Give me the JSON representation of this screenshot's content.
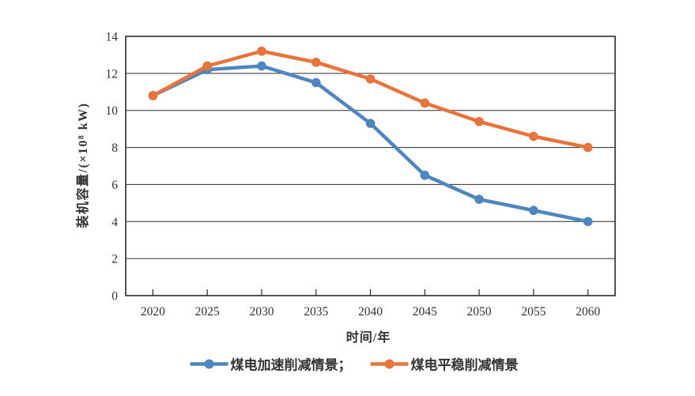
{
  "figure": {
    "background": "#ffffff",
    "text_color": "#333333",
    "axis_color": "#2b2b2b"
  },
  "chart_data": {
    "type": "line",
    "title": "",
    "xlabel": "时间/年",
    "ylabel": "装机容量/(×10⁸ kW)",
    "categories": [
      "2020",
      "2025",
      "2030",
      "2035",
      "2040",
      "2045",
      "2050",
      "2055",
      "2060"
    ],
    "yticks": [
      "0",
      "2",
      "4",
      "6",
      "8",
      "10",
      "12",
      "14"
    ],
    "ylim": [
      0,
      14
    ],
    "grid": true,
    "legend_position": "bottom",
    "series": [
      {
        "name": "煤电加速削减情景",
        "color": "#4E86C0",
        "marker": "circle",
        "values": [
          10.8,
          12.2,
          12.4,
          11.5,
          9.3,
          6.5,
          5.2,
          4.6,
          4.0
        ]
      },
      {
        "name": "煤电平稳削减情景",
        "color": "#E8743B",
        "marker": "circle",
        "values": [
          10.8,
          12.4,
          13.2,
          12.6,
          11.7,
          10.4,
          9.4,
          8.6,
          8.0
        ]
      }
    ],
    "legend": [
      {
        "label": "煤电加速削减情景；"
      },
      {
        "label": "煤电平稳削减情景"
      }
    ]
  }
}
